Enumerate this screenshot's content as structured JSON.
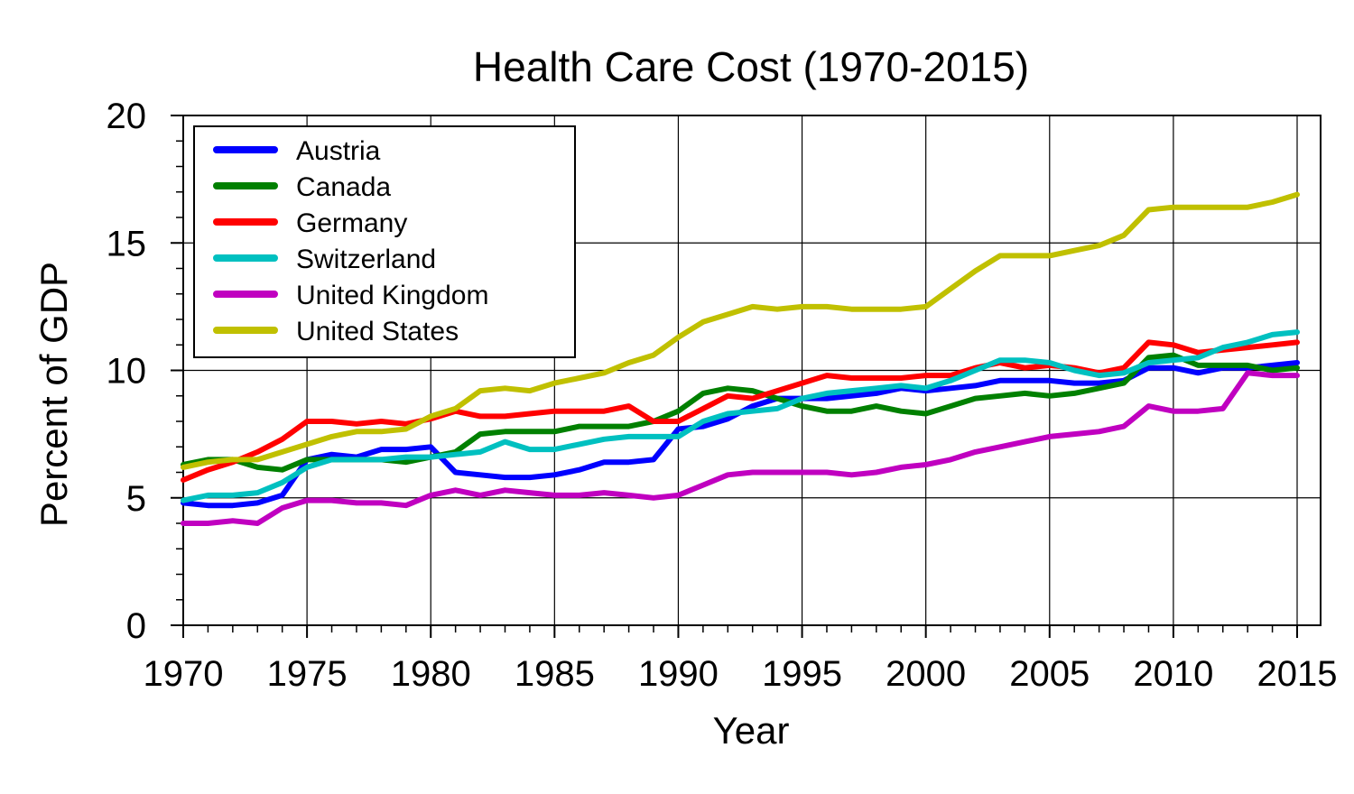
{
  "chart_data": {
    "type": "line",
    "title": "Health Care Cost (1970-2015)",
    "xlabel": "Year",
    "ylabel": "Percent of GDP",
    "xlim": [
      1970,
      2015
    ],
    "ylim": [
      0,
      20
    ],
    "xticks": [
      1970,
      1975,
      1980,
      1985,
      1990,
      1995,
      2000,
      2005,
      2010,
      2015
    ],
    "yticks": [
      0,
      5,
      10,
      15,
      20
    ],
    "grid": true,
    "legend_position": "top-left",
    "x": [
      1970,
      1971,
      1972,
      1973,
      1974,
      1975,
      1976,
      1977,
      1978,
      1979,
      1980,
      1981,
      1982,
      1983,
      1984,
      1985,
      1986,
      1987,
      1988,
      1989,
      1990,
      1991,
      1992,
      1993,
      1994,
      1995,
      1996,
      1997,
      1998,
      1999,
      2000,
      2001,
      2002,
      2003,
      2004,
      2005,
      2006,
      2007,
      2008,
      2009,
      2010,
      2011,
      2012,
      2013,
      2014,
      2015
    ],
    "series": [
      {
        "name": "Austria",
        "color": "#0000ff",
        "values": [
          4.8,
          4.7,
          4.7,
          4.8,
          5.1,
          6.5,
          6.7,
          6.6,
          6.9,
          6.9,
          7.0,
          6.0,
          5.9,
          5.8,
          5.8,
          5.9,
          6.1,
          6.4,
          6.4,
          6.5,
          7.7,
          7.8,
          8.1,
          8.6,
          8.9,
          8.9,
          8.9,
          9.0,
          9.1,
          9.3,
          9.2,
          9.3,
          9.4,
          9.6,
          9.6,
          9.6,
          9.5,
          9.5,
          9.6,
          10.1,
          10.1,
          9.9,
          10.1,
          10.1,
          10.2,
          10.3
        ]
      },
      {
        "name": "Canada",
        "color": "#008000",
        "values": [
          6.3,
          6.5,
          6.5,
          6.2,
          6.1,
          6.5,
          6.5,
          6.5,
          6.5,
          6.4,
          6.6,
          6.8,
          7.5,
          7.6,
          7.6,
          7.6,
          7.8,
          7.8,
          7.8,
          8.0,
          8.4,
          9.1,
          9.3,
          9.2,
          8.9,
          8.6,
          8.4,
          8.4,
          8.6,
          8.4,
          8.3,
          8.6,
          8.9,
          9.0,
          9.1,
          9.0,
          9.1,
          9.3,
          9.5,
          10.5,
          10.6,
          10.2,
          10.2,
          10.2,
          10.0,
          10.1
        ]
      },
      {
        "name": "Germany",
        "color": "#ff0000",
        "values": [
          5.7,
          6.1,
          6.4,
          6.8,
          7.3,
          8.0,
          8.0,
          7.9,
          8.0,
          7.9,
          8.1,
          8.4,
          8.2,
          8.2,
          8.3,
          8.4,
          8.4,
          8.4,
          8.6,
          8.0,
          8.0,
          8.5,
          9.0,
          8.9,
          9.2,
          9.5,
          9.8,
          9.7,
          9.7,
          9.7,
          9.8,
          9.8,
          10.1,
          10.3,
          10.1,
          10.2,
          10.1,
          9.9,
          10.1,
          11.1,
          11.0,
          10.7,
          10.8,
          10.9,
          11.0,
          11.1
        ]
      },
      {
        "name": "Switzerland",
        "color": "#00c0c0",
        "values": [
          4.9,
          5.1,
          5.1,
          5.2,
          5.6,
          6.2,
          6.5,
          6.5,
          6.5,
          6.6,
          6.6,
          6.7,
          6.8,
          7.2,
          6.9,
          6.9,
          7.1,
          7.3,
          7.4,
          7.4,
          7.4,
          8.0,
          8.3,
          8.4,
          8.5,
          8.9,
          9.1,
          9.2,
          9.3,
          9.4,
          9.3,
          9.6,
          10.0,
          10.4,
          10.4,
          10.3,
          10.0,
          9.8,
          9.9,
          10.3,
          10.4,
          10.5,
          10.9,
          11.1,
          11.4,
          11.5
        ]
      },
      {
        "name": "United Kingdom",
        "color": "#c000c0",
        "values": [
          4.0,
          4.0,
          4.1,
          4.0,
          4.6,
          4.9,
          4.9,
          4.8,
          4.8,
          4.7,
          5.1,
          5.3,
          5.1,
          5.3,
          5.2,
          5.1,
          5.1,
          5.2,
          5.1,
          5.0,
          5.1,
          5.5,
          5.9,
          6.0,
          6.0,
          6.0,
          6.0,
          5.9,
          6.0,
          6.2,
          6.3,
          6.5,
          6.8,
          7.0,
          7.2,
          7.4,
          7.5,
          7.6,
          7.8,
          8.6,
          8.4,
          8.4,
          8.5,
          9.9,
          9.8,
          9.8
        ]
      },
      {
        "name": "United States",
        "color": "#c0c000",
        "values": [
          6.2,
          6.4,
          6.5,
          6.5,
          6.8,
          7.1,
          7.4,
          7.6,
          7.6,
          7.7,
          8.2,
          8.5,
          9.2,
          9.3,
          9.2,
          9.5,
          9.7,
          9.9,
          10.3,
          10.6,
          11.3,
          11.9,
          12.2,
          12.5,
          12.4,
          12.5,
          12.5,
          12.4,
          12.4,
          12.4,
          12.5,
          13.2,
          13.9,
          14.5,
          14.5,
          14.5,
          14.7,
          14.9,
          15.3,
          16.3,
          16.4,
          16.4,
          16.4,
          16.4,
          16.6,
          16.9
        ]
      }
    ]
  }
}
